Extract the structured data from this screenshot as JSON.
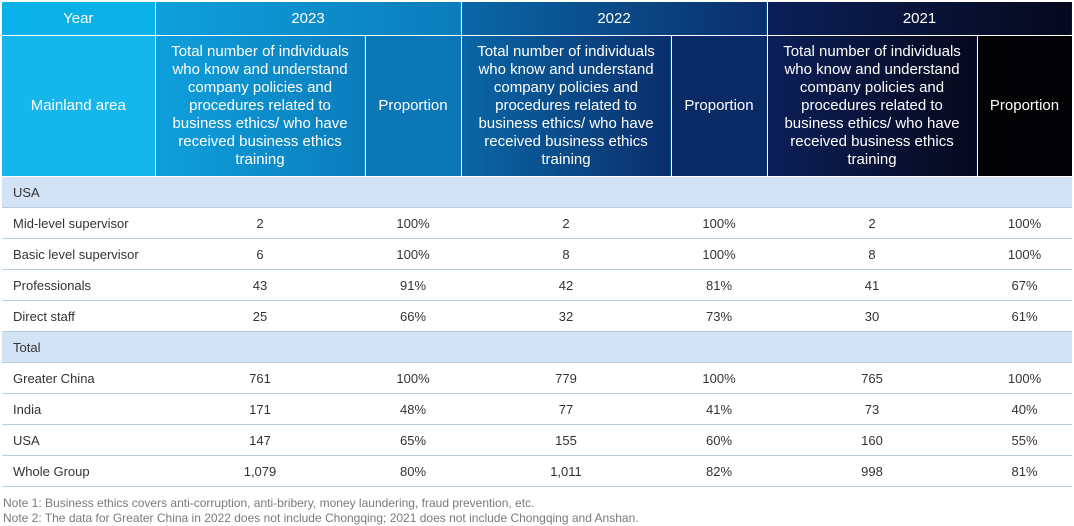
{
  "header": {
    "year_label": "Year",
    "years": [
      "2023",
      "2022",
      "2021"
    ],
    "mainland_label": "Mainland area",
    "count_label": "Total number of individuals who know and understand company policies and procedures related to business ethics/ who have received business ethics training",
    "proportion_label": "Proportion"
  },
  "sections": [
    {
      "title": "USA",
      "rows": [
        {
          "label": "Mid-level supervisor",
          "values": [
            "2",
            "100%",
            "2",
            "100%",
            "2",
            "100%"
          ]
        },
        {
          "label": "Basic level supervisor",
          "values": [
            "6",
            "100%",
            "8",
            "100%",
            "8",
            "100%"
          ]
        },
        {
          "label": "Professionals",
          "values": [
            "43",
            "91%",
            "42",
            "81%",
            "41",
            "67%"
          ]
        },
        {
          "label": "Direct staff",
          "values": [
            "25",
            "66%",
            "32",
            "73%",
            "30",
            "61%"
          ]
        }
      ]
    },
    {
      "title": "Total",
      "rows": [
        {
          "label": "Greater China",
          "values": [
            "761",
            "100%",
            "779",
            "100%",
            "765",
            "100%"
          ]
        },
        {
          "label": "India",
          "values": [
            "171",
            "48%",
            "77",
            "41%",
            "73",
            "40%"
          ]
        },
        {
          "label": "USA",
          "values": [
            "147",
            "65%",
            "155",
            "60%",
            "160",
            "55%"
          ]
        },
        {
          "label": "Whole Group",
          "values": [
            "1,079",
            "80%",
            "1,011",
            "82%",
            "998",
            "81%"
          ]
        }
      ]
    }
  ],
  "notes": [
    "Note 1: Business ethics covers anti-corruption, anti-bribery, money laundering, fraud prevention, etc.",
    "Note 2: The data for Greater China in 2022 does not include Chongqing; 2021 does not include Chongqing and Anshan."
  ],
  "colors": {
    "header_cyan": "#14b6ec",
    "header_2023": "#0b7cbb",
    "header_2022": "#0a2e6b",
    "header_2021": "#030306",
    "section_bg": "#d3e3f6"
  }
}
